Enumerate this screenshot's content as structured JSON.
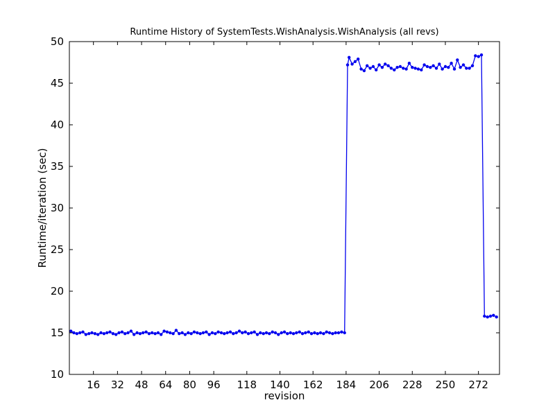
{
  "chart_data": {
    "type": "line",
    "title": "Runtime History of SystemTests.WishAnalysis.WishAnalysis (all revs)",
    "xlabel": "revision",
    "ylabel": "Runtime/iteration (sec)",
    "xlim": [
      0,
      286
    ],
    "ylim": [
      10,
      50
    ],
    "xticks": [
      16,
      32,
      48,
      64,
      80,
      96,
      118,
      140,
      162,
      184,
      206,
      228,
      250,
      272
    ],
    "yticks": [
      10,
      15,
      20,
      25,
      30,
      35,
      40,
      45,
      50
    ],
    "grid": false,
    "legend": "none",
    "line_color": "#0000ee",
    "series": [
      {
        "x": [
          1,
          3,
          5,
          7,
          9,
          11,
          13,
          15,
          17,
          19,
          21,
          23,
          25,
          27,
          29,
          31,
          33,
          35,
          37,
          39,
          41,
          43,
          45,
          47,
          49,
          51,
          53,
          55,
          57,
          59,
          61,
          63,
          65,
          67,
          69,
          71,
          73,
          75,
          77,
          79,
          81,
          83,
          85,
          87,
          89,
          91,
          93,
          95,
          97,
          99,
          101,
          103,
          105,
          107,
          109,
          111,
          113,
          115,
          117,
          119,
          121,
          123,
          125,
          127,
          129,
          131,
          133,
          135,
          137,
          139,
          141,
          143,
          145,
          147,
          149,
          151,
          153,
          155,
          157,
          159,
          161,
          163,
          165,
          167,
          169,
          171,
          173,
          175,
          177,
          179,
          181,
          183,
          185,
          186,
          188,
          190,
          192,
          194,
          196,
          198,
          200,
          202,
          204,
          206,
          208,
          210,
          212,
          214,
          216,
          218,
          220,
          222,
          224,
          226,
          228,
          230,
          232,
          234,
          236,
          238,
          240,
          242,
          244,
          246,
          248,
          250,
          252,
          254,
          256,
          258,
          260,
          262,
          264,
          266,
          268,
          270,
          272,
          274,
          276,
          278,
          280,
          282,
          284
        ],
        "y": [
          15.2,
          15.0,
          14.9,
          15.0,
          15.1,
          14.8,
          14.9,
          15.0,
          14.9,
          14.8,
          15.0,
          14.9,
          15.0,
          15.1,
          14.9,
          14.8,
          15.0,
          15.1,
          14.9,
          15.0,
          15.2,
          14.8,
          15.0,
          14.9,
          15.0,
          15.1,
          14.9,
          15.0,
          14.9,
          15.0,
          14.8,
          15.2,
          15.1,
          15.0,
          14.9,
          15.3,
          14.9,
          15.0,
          14.8,
          15.0,
          14.9,
          15.1,
          15.0,
          14.9,
          15.0,
          15.1,
          14.8,
          15.0,
          14.9,
          15.1,
          15.0,
          14.9,
          15.0,
          15.1,
          14.9,
          15.0,
          15.2,
          15.0,
          15.1,
          14.9,
          15.0,
          15.1,
          14.8,
          15.0,
          14.9,
          15.0,
          14.9,
          15.1,
          15.0,
          14.8,
          15.0,
          15.1,
          14.9,
          15.0,
          14.9,
          15.0,
          15.1,
          14.9,
          15.0,
          15.1,
          14.9,
          15.0,
          14.9,
          15.0,
          14.9,
          15.1,
          15.0,
          14.9,
          15.0,
          15.0,
          15.1,
          15.0,
          47.2,
          48.1,
          47.3,
          47.6,
          47.9,
          46.7,
          46.5,
          47.1,
          46.8,
          47.0,
          46.6,
          47.2,
          46.9,
          47.3,
          47.1,
          46.8,
          46.6,
          46.9,
          47.0,
          46.8,
          46.7,
          47.4,
          46.9,
          46.8,
          46.7,
          46.6,
          47.2,
          47.0,
          46.9,
          47.1,
          46.8,
          47.3,
          46.7,
          47.0,
          46.9,
          47.4,
          46.7,
          47.8,
          46.9,
          47.2,
          46.8,
          46.8,
          47.1,
          48.3,
          48.2,
          48.4,
          17.0,
          16.9,
          17.0,
          17.1,
          16.9
        ]
      }
    ]
  }
}
